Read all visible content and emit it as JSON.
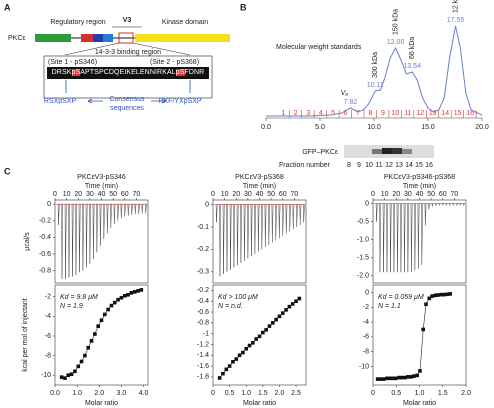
{
  "panel_labels": [
    "A",
    "B",
    "C"
  ],
  "panel_a": {
    "protein": "PKCε",
    "regulatory": "Regulatory region",
    "v3": "V3",
    "kinase": "Kinase domain",
    "binding": "14-3-3 binding region",
    "site1": "(Site 1 - pS346)",
    "site2": "(Site 2 - pS368)",
    "sequence": [
      "DRSK",
      "pS",
      "APTSPCDQEIKELENNIRKAL",
      "pS",
      "FDNR"
    ],
    "motif1": "RSXpSXP",
    "motif2": "RXF/YXpSXP",
    "consensus": [
      "Consensus",
      "sequences"
    ]
  },
  "gel": {
    "label": "GFP–PKCε",
    "fraction_label": "Fraction number",
    "fractions": [
      8,
      9,
      10,
      11,
      12,
      13,
      14,
      15,
      16
    ]
  },
  "chart_data": [
    {
      "type": "line",
      "title": "Molecular weight standards",
      "color": "#6a7fd0",
      "fraction_color": "#d43a3a",
      "xlim": [
        0,
        20
      ],
      "xticks": [
        {
          "value": 0,
          "label": "0.0"
        },
        {
          "value": 5,
          "label": "5.0"
        },
        {
          "value": 10,
          "label": "10.0"
        },
        {
          "value": 15,
          "label": "15.0"
        },
        {
          "value": 20,
          "label": "20.0"
        }
      ],
      "ylim": [
        0,
        100
      ],
      "x": [
        0,
        2,
        4,
        6,
        7,
        7.82,
        8.5,
        9,
        9.5,
        10.11,
        10.6,
        11,
        11.5,
        12,
        12.5,
        13,
        13.54,
        14,
        14.5,
        15,
        15.5,
        16,
        16.5,
        17,
        17.55,
        18,
        18.5,
        19,
        20
      ],
      "values": [
        2,
        2,
        2,
        3,
        5,
        10,
        6,
        8,
        14,
        27,
        28,
        40,
        60,
        70,
        58,
        44,
        46,
        38,
        20,
        10,
        6,
        8,
        20,
        60,
        92,
        70,
        25,
        8,
        3
      ],
      "peaks": [
        {
          "index": 5,
          "label": "7.82",
          "name": "V₀"
        },
        {
          "index": 9,
          "label": "10.11",
          "name": "300 kDa"
        },
        {
          "index": 13,
          "label": "12.00",
          "name": "150 kDa"
        },
        {
          "index": 16,
          "label": "13.54",
          "name": "66 kDa"
        },
        {
          "index": 24,
          "label": "17.55",
          "name": "12 kDa"
        }
      ],
      "fractions": [
        1,
        2,
        3,
        4,
        5,
        6,
        7,
        8,
        9,
        10,
        11,
        12,
        13,
        14,
        15,
        16
      ]
    },
    {
      "type": "itc",
      "title": "PKCεV3-pS346",
      "time_label": "Time (min)",
      "raw_ylabel": "μcal/s",
      "ylabel": "kcal per mol of injectant",
      "xlabel": "Molar ratio",
      "tlim": [
        0,
        80
      ],
      "tticks": [
        0,
        10,
        20,
        30,
        40,
        50,
        60,
        70
      ],
      "times": [
        3,
        6,
        9,
        12,
        15,
        18,
        21,
        24,
        27,
        30,
        33,
        36,
        39,
        42,
        45,
        48,
        51,
        54,
        57,
        60,
        63,
        66,
        69,
        72,
        75,
        78
      ],
      "peaks": [
        -0.25,
        -0.9,
        -0.9,
        -0.88,
        -0.87,
        -0.85,
        -0.82,
        -0.8,
        -0.76,
        -0.72,
        -0.66,
        -0.58,
        -0.5,
        -0.42,
        -0.35,
        -0.29,
        -0.24,
        -0.2,
        -0.17,
        -0.15,
        -0.14,
        -0.13,
        -0.12,
        -0.12,
        -0.11,
        -0.11
      ],
      "raw_ylim": [
        -0.95,
        0.05
      ],
      "raw_yticks": [
        0,
        -0.2,
        -0.4,
        -0.6,
        -0.8
      ],
      "xlim": [
        0,
        4.2
      ],
      "xticks": [
        {
          "value": 0,
          "label": "0.0"
        },
        {
          "value": 1,
          "label": "1.0"
        },
        {
          "value": 2,
          "label": "2.0"
        },
        {
          "value": 3,
          "label": "3.0"
        },
        {
          "value": 4,
          "label": "4.0"
        }
      ],
      "ylim": [
        -11,
        -0.8
      ],
      "yticks": [
        -2,
        -4,
        -6,
        -8,
        -10
      ],
      "x": [
        0.3,
        0.45,
        0.6,
        0.75,
        0.9,
        1.05,
        1.2,
        1.35,
        1.5,
        1.65,
        1.8,
        1.95,
        2.1,
        2.25,
        2.4,
        2.55,
        2.7,
        2.85,
        3.0,
        3.15,
        3.3,
        3.45,
        3.6,
        3.75,
        3.9
      ],
      "values": [
        -10.2,
        -10.3,
        -10.0,
        -9.9,
        -9.6,
        -9.1,
        -8.6,
        -8.0,
        -7.2,
        -6.5,
        -5.8,
        -5.0,
        -4.4,
        -3.8,
        -3.3,
        -2.9,
        -2.6,
        -2.3,
        -2.1,
        -1.9,
        -1.8,
        -1.6,
        -1.5,
        -1.4,
        -1.3
      ],
      "kd": "Kd = 9.8 μM",
      "n": "N = 1.9"
    },
    {
      "type": "itc",
      "title": "PKCεV3-pS368",
      "time_label": "Time (min)",
      "xlabel": "Molar ratio",
      "tlim": [
        0,
        80
      ],
      "tticks": [
        0,
        10,
        20,
        30,
        40,
        50,
        60,
        70
      ],
      "times": [
        3,
        6,
        9,
        12,
        15,
        18,
        21,
        24,
        27,
        30,
        33,
        36,
        39,
        42,
        45,
        48,
        51,
        54,
        57,
        60,
        63,
        66,
        69,
        72,
        75,
        78
      ],
      "peaks": [
        -0.08,
        -0.32,
        -0.31,
        -0.3,
        -0.29,
        -0.28,
        -0.27,
        -0.26,
        -0.25,
        -0.24,
        -0.23,
        -0.22,
        -0.21,
        -0.2,
        -0.19,
        -0.18,
        -0.17,
        -0.16,
        -0.15,
        -0.14,
        -0.13,
        -0.12,
        -0.11,
        -0.1,
        -0.09,
        -0.08
      ],
      "raw_ylim": [
        -0.35,
        0.02
      ],
      "raw_yticks": [
        0,
        -0.1,
        -0.2,
        -0.3
      ],
      "xlim": [
        0,
        2.8
      ],
      "xticks": [
        0,
        0.5,
        {
          "value": 1,
          "label": "1.0"
        },
        1.5,
        {
          "value": 2,
          "label": "2.0"
        },
        2.5
      ],
      "ylim": [
        -1.95,
        -0.1
      ],
      "yticks": [
        -0.2,
        -0.4,
        -0.6,
        -0.8,
        -1.0,
        -1.2,
        -1.4,
        -1.6,
        -1.8
      ],
      "x": [
        0.2,
        0.3,
        0.4,
        0.5,
        0.6,
        0.7,
        0.8,
        0.9,
        1.0,
        1.1,
        1.2,
        1.3,
        1.4,
        1.5,
        1.6,
        1.7,
        1.8,
        1.9,
        2.0,
        2.1,
        2.2,
        2.3,
        2.4,
        2.5,
        2.6
      ],
      "values": [
        -1.82,
        -1.74,
        -1.66,
        -1.6,
        -1.52,
        -1.47,
        -1.4,
        -1.35,
        -1.28,
        -1.22,
        -1.17,
        -1.1,
        -1.05,
        -0.98,
        -0.93,
        -0.86,
        -0.8,
        -0.74,
        -0.68,
        -0.62,
        -0.56,
        -0.5,
        -0.45,
        -0.4,
        -0.35
      ],
      "kd": "Kd > 100 μM",
      "n": "N = n.d."
    },
    {
      "type": "itc",
      "title": "PKCεV3-pS346-pS368",
      "time_label": "Time (min)",
      "xlabel": "Molar ratio",
      "tlim": [
        0,
        80
      ],
      "tticks": [
        0,
        10,
        20,
        30,
        40,
        50,
        60,
        70
      ],
      "times": [
        3,
        6,
        9,
        12,
        15,
        18,
        21,
        24,
        27,
        30,
        33,
        36,
        39,
        42,
        45,
        48,
        51,
        54,
        57,
        60,
        63,
        66,
        69,
        72,
        75,
        78
      ],
      "peaks": [
        -0.5,
        -1.9,
        -1.9,
        -1.9,
        -1.9,
        -1.9,
        -1.9,
        -1.9,
        -1.9,
        -1.9,
        -1.9,
        -1.85,
        -1.8,
        -1.7,
        -0.6,
        -0.15,
        -0.08,
        -0.06,
        -0.05,
        -0.05,
        -0.05,
        -0.05,
        -0.05,
        -0.05,
        -0.05,
        -0.05
      ],
      "raw_ylim": [
        -2.2,
        0.1
      ],
      "raw_yticks": [
        0,
        -0.5,
        {
          "value": -1,
          "label": "-1.0"
        },
        -1.5,
        {
          "value": -2,
          "label": "-2.0"
        }
      ],
      "xlim": [
        0,
        2.0
      ],
      "xticks": [
        0,
        0.5,
        {
          "value": 1,
          "label": "1.0"
        },
        1.5,
        {
          "value": 2,
          "label": "2.0"
        }
      ],
      "ylim": [
        -12.5,
        1
      ],
      "yticks": [
        0,
        -2,
        -4,
        -6,
        -8,
        -10
      ],
      "x": [
        0.1,
        0.17,
        0.23,
        0.3,
        0.36,
        0.43,
        0.49,
        0.56,
        0.62,
        0.69,
        0.75,
        0.82,
        0.88,
        0.95,
        1.01,
        1.08,
        1.14,
        1.21,
        1.27,
        1.34,
        1.4,
        1.47,
        1.53,
        1.6,
        1.66
      ],
      "values": [
        -11.7,
        -11.7,
        -11.7,
        -11.6,
        -11.6,
        -11.6,
        -11.6,
        -11.5,
        -11.5,
        -11.5,
        -11.4,
        -11.4,
        -11.3,
        -11.2,
        -10.6,
        -5.0,
        -1.6,
        -0.8,
        -0.5,
        -0.4,
        -0.35,
        -0.3,
        -0.3,
        -0.25,
        -0.2
      ],
      "kd": "Kd = 0.059 μM",
      "n": "N = 1.1"
    }
  ]
}
